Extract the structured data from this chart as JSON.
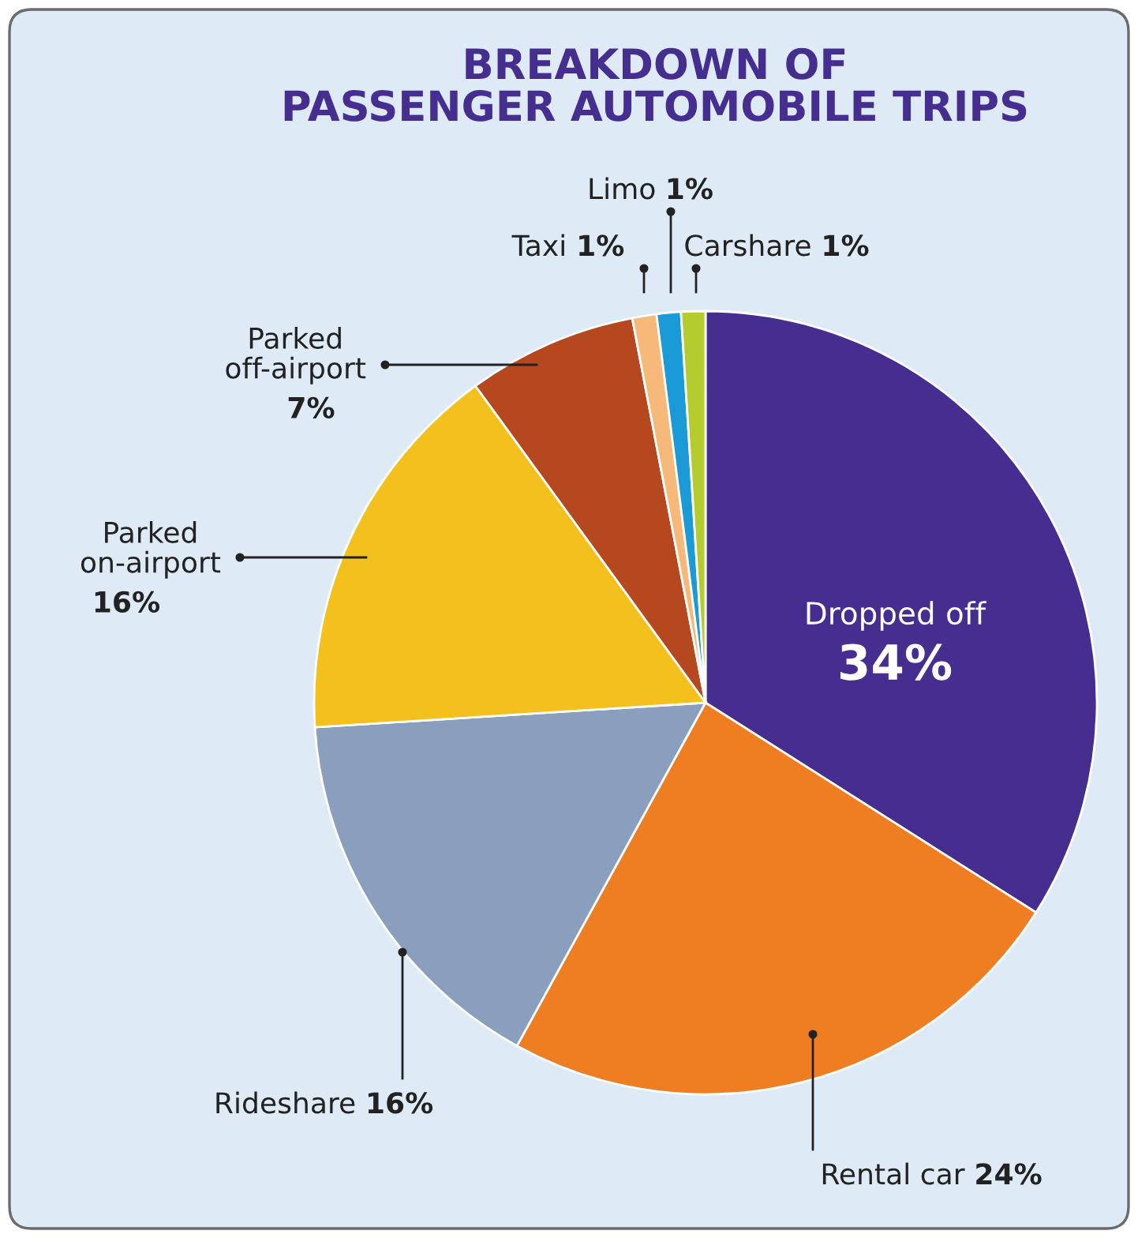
{
  "chart_data": {
    "type": "pie",
    "title": "BREAKDOWN OF\nPASSENGER AUTOMOBILE TRIPS",
    "categories": [
      "Dropped off",
      "Rental car",
      "Rideshare",
      "Parked\non-airport",
      "Parked\noff-airport",
      "Taxi",
      "Limo",
      "Carshare"
    ],
    "values": [
      34,
      24,
      16,
      16,
      7,
      1,
      1,
      1
    ],
    "colors": [
      "#452e8f",
      "#ef7d22",
      "#8a9fbd",
      "#f4c01e",
      "#b5481e",
      "#f6b97a",
      "#1a9ad6",
      "#b5cc2e"
    ],
    "value_labels": [
      "34%",
      "24%",
      "16%",
      "16%",
      "7%",
      "1%",
      "1%",
      "1%"
    ]
  }
}
